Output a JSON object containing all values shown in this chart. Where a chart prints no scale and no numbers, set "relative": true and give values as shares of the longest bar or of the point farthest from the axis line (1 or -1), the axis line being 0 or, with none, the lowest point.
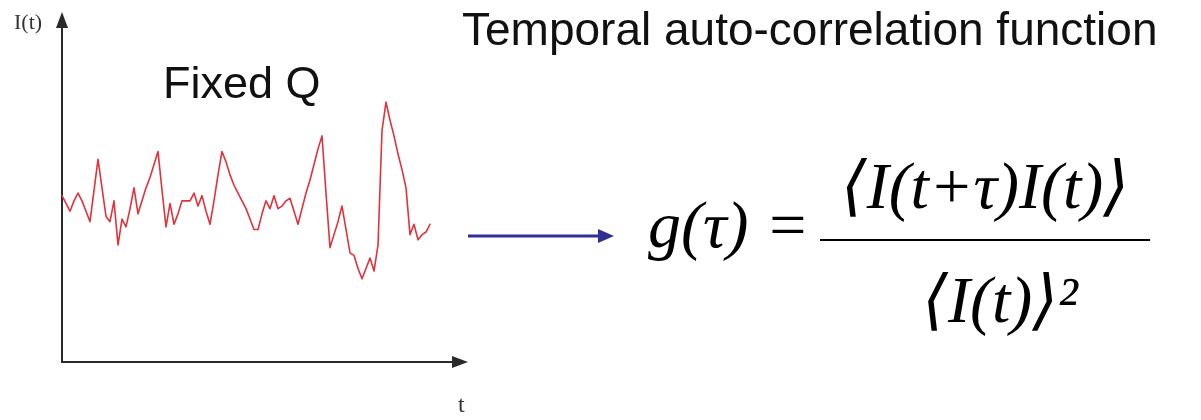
{
  "chart_data": {
    "type": "line",
    "title": "Fixed Q",
    "xlabel": "t",
    "ylabel": "I(t)",
    "annotations": [
      "Temporal auto-correlation function",
      "g(τ) =",
      "⟨I(t+τ)I(t)⟩",
      "⟨I(t)⟩²"
    ],
    "categories": [
      null,
      null,
      null,
      null,
      null,
      null,
      null,
      null,
      null,
      null,
      null,
      null,
      null,
      null,
      null,
      null,
      null,
      null,
      null,
      null,
      null,
      null,
      null,
      null,
      null,
      null,
      null,
      null,
      null,
      null,
      null,
      null,
      null,
      null,
      null,
      null,
      null,
      null,
      null,
      null,
      null,
      null,
      null,
      null,
      null,
      null,
      null,
      null,
      null,
      null,
      null,
      null,
      null,
      null,
      null,
      null,
      null,
      null,
      null,
      null,
      null,
      null,
      null,
      null,
      null,
      null,
      null,
      null,
      null,
      null,
      null,
      null,
      null,
      null,
      null,
      null,
      null,
      null,
      null,
      null,
      null,
      null,
      null,
      null,
      null,
      null,
      null,
      null,
      null,
      null,
      null,
      null,
      null,
      null,
      null,
      null,
      null,
      null,
      null,
      null
    ],
    "series": [
      {
        "color": "#e0323c",
        "values": [
          0.64,
          0.61,
          0.58,
          0.62,
          0.65,
          0.62,
          0.58,
          0.54,
          0.66,
          0.78,
          0.67,
          0.56,
          0.54,
          0.62,
          0.45,
          0.55,
          0.52,
          0.59,
          0.67,
          0.57,
          0.62,
          0.67,
          0.71,
          0.76,
          0.81,
          0.66,
          0.52,
          0.61,
          0.53,
          0.57,
          0.62,
          0.62,
          0.62,
          0.65,
          0.6,
          0.64,
          0.58,
          0.53,
          0.62,
          0.72,
          0.81,
          0.77,
          0.72,
          0.68,
          0.65,
          0.62,
          0.59,
          0.55,
          0.51,
          0.51,
          0.57,
          0.62,
          0.59,
          0.64,
          0.59,
          0.6,
          0.62,
          0.63,
          0.58,
          0.53,
          0.59,
          0.65,
          0.7,
          0.76,
          0.82,
          0.87,
          0.65,
          0.44,
          0.49,
          0.54,
          0.6,
          0.51,
          0.42,
          0.41,
          0.36,
          0.32,
          0.36,
          0.4,
          0.35,
          0.45,
          0.89,
          1,
          0.93,
          0.87,
          0.8,
          0.74,
          0.67,
          0.49,
          0.53,
          0.47,
          0.49,
          0.5,
          0.53,
          null,
          null,
          null,
          null,
          null,
          null,
          null
        ]
      }
    ],
    "relative": true,
    "marker": "none",
    "legend": false,
    "grid": false,
    "tick_labels": false
  }
}
